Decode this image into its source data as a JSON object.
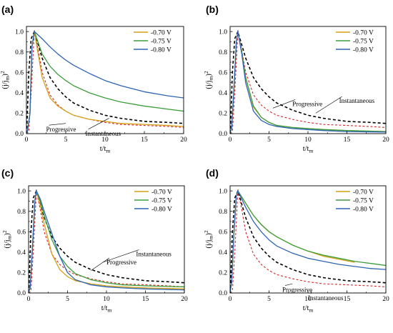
{
  "chart_data": [
    {
      "type": "line",
      "panel_label": "(a)",
      "xlabel": "t/t",
      "xlabel_sub": "m",
      "ylabel": "(j/j",
      "ylabel_sub": "m",
      "ylabel_close": ")",
      "ylabel_sup": "2",
      "xlim": [
        0,
        20
      ],
      "ylim": [
        0,
        1.05
      ],
      "xticks": [
        "0",
        "5",
        "10",
        "15",
        "20"
      ],
      "yticks": [
        "0.0",
        "0.2",
        "0.4",
        "0.6",
        "0.8",
        "1.0"
      ],
      "legend_position": "top-right",
      "series": [
        {
          "name": "-0.70 V",
          "color": "#d4a017",
          "x": [
            0,
            0.1,
            0.45,
            0.7,
            1,
            2,
            3,
            4,
            5,
            6,
            8,
            10,
            12,
            15,
            18,
            20
          ],
          "y": [
            0.01,
            0.01,
            0.2,
            0.85,
            1.0,
            0.55,
            0.35,
            0.27,
            0.22,
            0.18,
            0.14,
            0.12,
            0.1,
            0.09,
            0.08,
            0.07
          ]
        },
        {
          "name": "-0.75 V",
          "color": "#3a9e3a",
          "x": [
            0,
            0.1,
            0.45,
            0.7,
            1,
            2,
            3,
            4,
            5,
            6,
            8,
            10,
            12,
            15,
            18,
            20
          ],
          "y": [
            0.01,
            0.01,
            0.2,
            0.85,
            1.0,
            0.78,
            0.66,
            0.58,
            0.52,
            0.47,
            0.4,
            0.35,
            0.31,
            0.27,
            0.24,
            0.22
          ]
        },
        {
          "name": "-0.80 V",
          "color": "#2f63b4",
          "x": [
            0,
            0.1,
            0.45,
            0.7,
            1,
            2,
            3,
            4,
            5,
            6,
            8,
            10,
            12,
            15,
            18,
            20
          ],
          "y": [
            0.01,
            0.01,
            0.2,
            0.85,
            1.0,
            0.93,
            0.85,
            0.78,
            0.72,
            0.67,
            0.59,
            0.52,
            0.47,
            0.41,
            0.37,
            0.35
          ]
        }
      ],
      "theory": [
        {
          "name": "Progressive",
          "color": "#d62728",
          "x": [
            0.01,
            0.3,
            0.6,
            1,
            1.5,
            2,
            3,
            4,
            5,
            6,
            8,
            10,
            12,
            15,
            18,
            20
          ],
          "y": [
            0.0,
            0.02,
            0.4,
            1.0,
            0.82,
            0.6,
            0.38,
            0.28,
            0.22,
            0.18,
            0.14,
            0.11,
            0.09,
            0.08,
            0.07,
            0.06
          ]
        },
        {
          "name": "Instantaneous",
          "color": "#000000",
          "x": [
            0.01,
            0.1,
            0.3,
            0.6,
            1,
            2,
            3,
            4,
            5,
            6,
            8,
            10,
            12,
            15,
            18,
            20
          ],
          "y": [
            0.0,
            0.16,
            0.6,
            0.93,
            1.0,
            0.74,
            0.55,
            0.44,
            0.36,
            0.3,
            0.23,
            0.18,
            0.15,
            0.12,
            0.11,
            0.1
          ]
        }
      ],
      "annotations": [
        "Progressive",
        "Instantaneous"
      ]
    },
    {
      "type": "line",
      "panel_label": "(b)",
      "xlabel": "t/t",
      "xlabel_sub": "m",
      "ylabel": "(j/j",
      "ylabel_sub": "m",
      "ylabel_close": ")",
      "ylabel_sup": "2",
      "xlim": [
        0,
        20
      ],
      "ylim": [
        0,
        1.05
      ],
      "xticks": [
        "0",
        "5",
        "10",
        "15",
        "20"
      ],
      "yticks": [
        "0.0",
        "0.2",
        "0.4",
        "0.6",
        "0.8",
        "1.0"
      ],
      "legend_position": "top-right",
      "series": [
        {
          "name": "-0.70 V",
          "color": "#d4a017",
          "x": [
            0,
            0.2,
            0.5,
            0.8,
            1,
            1.5,
            2,
            3,
            4,
            5,
            6,
            8,
            10,
            12,
            15,
            20
          ],
          "y": [
            0.01,
            0.05,
            0.45,
            0.9,
            1.0,
            0.8,
            0.55,
            0.26,
            0.16,
            0.11,
            0.08,
            0.06,
            0.05,
            0.04,
            0.03,
            0.02
          ]
        },
        {
          "name": "-0.75 V",
          "color": "#3a9e3a",
          "x": [
            0,
            0.2,
            0.5,
            0.8,
            1,
            1.5,
            2,
            3,
            4,
            5,
            6,
            8,
            10,
            12,
            15,
            20
          ],
          "y": [
            0.01,
            0.05,
            0.45,
            0.9,
            1.0,
            0.8,
            0.55,
            0.27,
            0.16,
            0.11,
            0.08,
            0.06,
            0.05,
            0.04,
            0.03,
            0.02
          ]
        },
        {
          "name": "-0.80 V",
          "color": "#2f63b4",
          "x": [
            0,
            0.2,
            0.5,
            0.8,
            1,
            1.5,
            2,
            3,
            4,
            5,
            6,
            8,
            10,
            12,
            15,
            20
          ],
          "y": [
            0.01,
            0.05,
            0.45,
            0.9,
            1.0,
            0.78,
            0.5,
            0.22,
            0.13,
            0.09,
            0.07,
            0.05,
            0.04,
            0.03,
            0.02,
            0.015
          ]
        }
      ],
      "theory": [
        {
          "name": "Progressive",
          "color": "#d62728",
          "x": [
            0.01,
            0.3,
            0.6,
            1,
            1.5,
            2,
            3,
            4,
            5,
            6,
            8,
            10,
            12,
            15,
            18,
            20
          ],
          "y": [
            0.0,
            0.02,
            0.4,
            1.0,
            0.82,
            0.6,
            0.38,
            0.28,
            0.22,
            0.18,
            0.14,
            0.11,
            0.09,
            0.08,
            0.07,
            0.06
          ]
        },
        {
          "name": "Instantaneous",
          "color": "#000000",
          "x": [
            0.01,
            0.1,
            0.3,
            0.6,
            1,
            2,
            3,
            4,
            5,
            6,
            8,
            10,
            12,
            15,
            18,
            20
          ],
          "y": [
            0.0,
            0.16,
            0.6,
            0.93,
            1.0,
            0.74,
            0.55,
            0.44,
            0.36,
            0.3,
            0.23,
            0.18,
            0.15,
            0.12,
            0.11,
            0.1
          ]
        }
      ],
      "annotations": [
        "Progressive",
        "Instantaneous"
      ]
    },
    {
      "type": "line",
      "panel_label": "(c)",
      "xlabel": "t/t",
      "xlabel_sub": "m",
      "ylabel": "(j/j",
      "ylabel_sub": "m",
      "ylabel_close": ")",
      "ylabel_sup": "2",
      "xlim": [
        0,
        20
      ],
      "ylim": [
        0,
        1.05
      ],
      "xticks": [
        "0",
        "5",
        "10",
        "15",
        "20"
      ],
      "yticks": [
        "0.0",
        "0.2",
        "0.4",
        "0.6",
        "0.8",
        "1.0"
      ],
      "legend_position": "top-right",
      "series": [
        {
          "name": "-0.70 V",
          "color": "#d4a017",
          "x": [
            0,
            0.2,
            0.5,
            0.8,
            1,
            1.5,
            2,
            3,
            4,
            5,
            6,
            8,
            10,
            12,
            15,
            20
          ],
          "y": [
            0.01,
            0.05,
            0.45,
            0.9,
            1.0,
            0.86,
            0.68,
            0.38,
            0.23,
            0.16,
            0.12,
            0.09,
            0.07,
            0.06,
            0.05,
            0.04
          ]
        },
        {
          "name": "-0.75 V",
          "color": "#3a9e3a",
          "x": [
            0,
            0.2,
            0.5,
            0.8,
            1,
            1.5,
            2,
            3,
            4,
            5,
            6,
            8,
            10,
            12,
            15,
            20
          ],
          "y": [
            0.01,
            0.05,
            0.45,
            0.9,
            1.0,
            0.9,
            0.76,
            0.52,
            0.36,
            0.26,
            0.19,
            0.13,
            0.1,
            0.08,
            0.07,
            0.06
          ]
        },
        {
          "name": "-0.80 V",
          "color": "#2f63b4",
          "x": [
            0,
            0.2,
            0.5,
            0.8,
            1,
            1.5,
            2,
            3,
            4,
            5,
            6,
            8,
            10,
            12,
            15,
            20
          ],
          "y": [
            0.01,
            0.05,
            0.45,
            0.9,
            1.0,
            0.92,
            0.8,
            0.58,
            0.36,
            0.2,
            0.13,
            0.08,
            0.06,
            0.05,
            0.04,
            0.03
          ]
        }
      ],
      "theory": [
        {
          "name": "Progressive",
          "color": "#d62728",
          "x": [
            0.01,
            0.3,
            0.6,
            1,
            1.5,
            2,
            3,
            4,
            5,
            6,
            8,
            10,
            12,
            15,
            18,
            20
          ],
          "y": [
            0.0,
            0.02,
            0.4,
            1.0,
            0.82,
            0.6,
            0.38,
            0.28,
            0.22,
            0.18,
            0.14,
            0.11,
            0.09,
            0.08,
            0.07,
            0.06
          ]
        },
        {
          "name": "Instantaneous",
          "color": "#000000",
          "x": [
            0.01,
            0.1,
            0.3,
            0.6,
            1,
            2,
            3,
            4,
            5,
            6,
            8,
            10,
            12,
            15,
            18,
            20
          ],
          "y": [
            0.0,
            0.16,
            0.6,
            0.93,
            1.0,
            0.74,
            0.55,
            0.44,
            0.36,
            0.3,
            0.23,
            0.18,
            0.15,
            0.12,
            0.11,
            0.1
          ]
        }
      ],
      "annotations": [
        "Progressive",
        "Instantaneous"
      ]
    },
    {
      "type": "line",
      "panel_label": "(d)",
      "xlabel": "t/t",
      "xlabel_sub": "m",
      "ylabel": "(j/j",
      "ylabel_sub": "m",
      "ylabel_close": ")",
      "ylabel_sup": "2",
      "xlim": [
        0,
        20
      ],
      "ylim": [
        0,
        1.05
      ],
      "xticks": [
        "0",
        "5",
        "10",
        "15",
        "20"
      ],
      "yticks": [
        "0.0",
        "0.2",
        "0.4",
        "0.6",
        "0.8",
        "1.0"
      ],
      "legend_position": "top-right",
      "series": [
        {
          "name": "-0.70 V",
          "color": "#d4a017",
          "x": [
            0,
            0.2,
            0.5,
            0.8,
            1,
            2,
            3,
            4,
            5,
            6,
            8,
            10,
            12,
            14,
            16
          ],
          "y": [
            0.01,
            0.1,
            0.6,
            0.95,
            1.0,
            0.88,
            0.76,
            0.67,
            0.6,
            0.55,
            0.47,
            0.41,
            0.36,
            0.33,
            0.3
          ]
        },
        {
          "name": "-0.75 V",
          "color": "#3a9e3a",
          "x": [
            0,
            0.2,
            0.5,
            0.8,
            1,
            2,
            3,
            4,
            5,
            6,
            8,
            10,
            12,
            14,
            16,
            18,
            20
          ],
          "y": [
            0.01,
            0.1,
            0.6,
            0.95,
            1.0,
            0.88,
            0.76,
            0.67,
            0.6,
            0.55,
            0.47,
            0.41,
            0.37,
            0.34,
            0.31,
            0.29,
            0.27
          ]
        },
        {
          "name": "-0.80 V",
          "color": "#2f63b4",
          "x": [
            0,
            0.2,
            0.5,
            0.8,
            1,
            2,
            3,
            4,
            5,
            6,
            8,
            10,
            12,
            14,
            16,
            18,
            20
          ],
          "y": [
            0.01,
            0.1,
            0.6,
            0.95,
            1.0,
            0.84,
            0.7,
            0.6,
            0.52,
            0.46,
            0.39,
            0.34,
            0.31,
            0.28,
            0.26,
            0.24,
            0.23
          ]
        }
      ],
      "theory": [
        {
          "name": "Progressive",
          "color": "#d62728",
          "x": [
            0.01,
            0.3,
            0.6,
            1,
            1.5,
            2,
            3,
            4,
            5,
            6,
            8,
            10,
            12,
            15,
            18,
            20
          ],
          "y": [
            0.0,
            0.02,
            0.4,
            1.0,
            0.82,
            0.6,
            0.38,
            0.28,
            0.22,
            0.18,
            0.14,
            0.11,
            0.09,
            0.08,
            0.07,
            0.06
          ]
        },
        {
          "name": "Instantaneous",
          "color": "#000000",
          "x": [
            0.01,
            0.1,
            0.3,
            0.6,
            1,
            2,
            3,
            4,
            5,
            6,
            8,
            10,
            12,
            15,
            18,
            20
          ],
          "y": [
            0.0,
            0.16,
            0.6,
            0.93,
            1.0,
            0.74,
            0.55,
            0.44,
            0.36,
            0.3,
            0.23,
            0.18,
            0.15,
            0.12,
            0.11,
            0.1
          ]
        }
      ],
      "annotations": [
        "Progressive",
        "Instantaneous"
      ]
    }
  ]
}
